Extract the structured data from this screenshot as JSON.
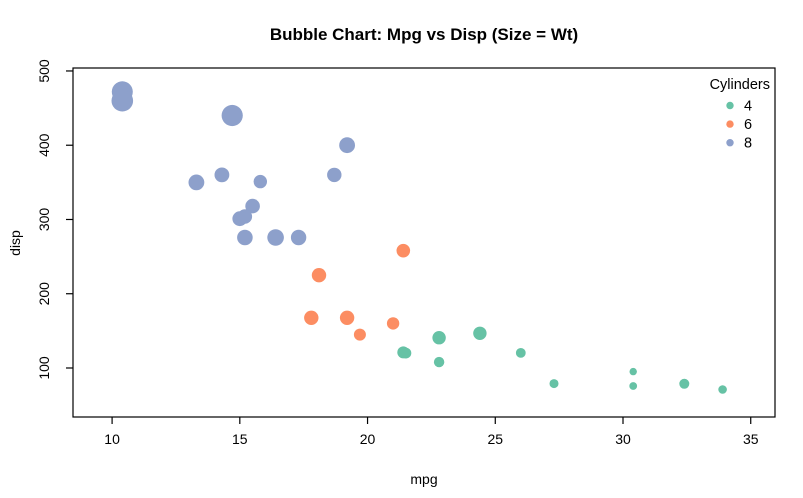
{
  "chart_data": {
    "type": "scatter",
    "subtype": "bubble",
    "title": "Bubble Chart: Mpg vs Disp (Size = Wt)",
    "xlabel": "mpg",
    "ylabel": "disp",
    "xlim": [
      8.47,
      35.95
    ],
    "ylim": [
      34,
      504
    ],
    "x_ticks": [
      10,
      15,
      20,
      25,
      30,
      35
    ],
    "y_ticks": [
      100,
      200,
      300,
      400,
      500
    ],
    "grid": false,
    "size_encoding": "wt",
    "legend": {
      "title": "Cylinders",
      "position": "top-right",
      "entries": [
        {
          "label": "4",
          "color": "#66C2A5"
        },
        {
          "label": "6",
          "color": "#FC8D62"
        },
        {
          "label": "8",
          "color": "#8DA0CB"
        }
      ]
    },
    "series": [
      {
        "name": "4",
        "color": "#66C2A5",
        "points": [
          {
            "mpg": 22.8,
            "disp": 108.0,
            "wt": 2.32
          },
          {
            "mpg": 24.4,
            "disp": 146.7,
            "wt": 3.19
          },
          {
            "mpg": 22.8,
            "disp": 140.8,
            "wt": 3.15
          },
          {
            "mpg": 32.4,
            "disp": 78.7,
            "wt": 2.2
          },
          {
            "mpg": 30.4,
            "disp": 75.7,
            "wt": 1.615
          },
          {
            "mpg": 33.9,
            "disp": 71.1,
            "wt": 1.835
          },
          {
            "mpg": 21.5,
            "disp": 120.1,
            "wt": 2.465
          },
          {
            "mpg": 27.3,
            "disp": 79.0,
            "wt": 1.935
          },
          {
            "mpg": 26.0,
            "disp": 120.3,
            "wt": 2.14
          },
          {
            "mpg": 30.4,
            "disp": 95.1,
            "wt": 1.513
          },
          {
            "mpg": 21.4,
            "disp": 121.0,
            "wt": 2.78
          }
        ]
      },
      {
        "name": "6",
        "color": "#FC8D62",
        "points": [
          {
            "mpg": 21.0,
            "disp": 160.0,
            "wt": 2.62
          },
          {
            "mpg": 21.0,
            "disp": 160.0,
            "wt": 2.875
          },
          {
            "mpg": 21.4,
            "disp": 258.0,
            "wt": 3.215
          },
          {
            "mpg": 18.1,
            "disp": 225.0,
            "wt": 3.46
          },
          {
            "mpg": 19.2,
            "disp": 167.6,
            "wt": 3.44
          },
          {
            "mpg": 17.8,
            "disp": 167.6,
            "wt": 3.44
          },
          {
            "mpg": 19.7,
            "disp": 145.0,
            "wt": 2.77
          }
        ]
      },
      {
        "name": "8",
        "color": "#8DA0CB",
        "points": [
          {
            "mpg": 18.7,
            "disp": 360.0,
            "wt": 3.44
          },
          {
            "mpg": 14.3,
            "disp": 360.0,
            "wt": 3.57
          },
          {
            "mpg": 16.4,
            "disp": 275.8,
            "wt": 4.07
          },
          {
            "mpg": 17.3,
            "disp": 275.8,
            "wt": 3.73
          },
          {
            "mpg": 15.2,
            "disp": 275.8,
            "wt": 3.78
          },
          {
            "mpg": 10.4,
            "disp": 472.0,
            "wt": 5.25
          },
          {
            "mpg": 10.4,
            "disp": 460.0,
            "wt": 5.424
          },
          {
            "mpg": 14.7,
            "disp": 440.0,
            "wt": 5.345
          },
          {
            "mpg": 15.5,
            "disp": 318.0,
            "wt": 3.52
          },
          {
            "mpg": 15.2,
            "disp": 304.0,
            "wt": 3.435
          },
          {
            "mpg": 13.3,
            "disp": 350.0,
            "wt": 3.84
          },
          {
            "mpg": 19.2,
            "disp": 400.0,
            "wt": 3.845
          },
          {
            "mpg": 15.8,
            "disp": 351.0,
            "wt": 3.17
          },
          {
            "mpg": 15.0,
            "disp": 301.0,
            "wt": 3.57
          }
        ]
      }
    ]
  }
}
